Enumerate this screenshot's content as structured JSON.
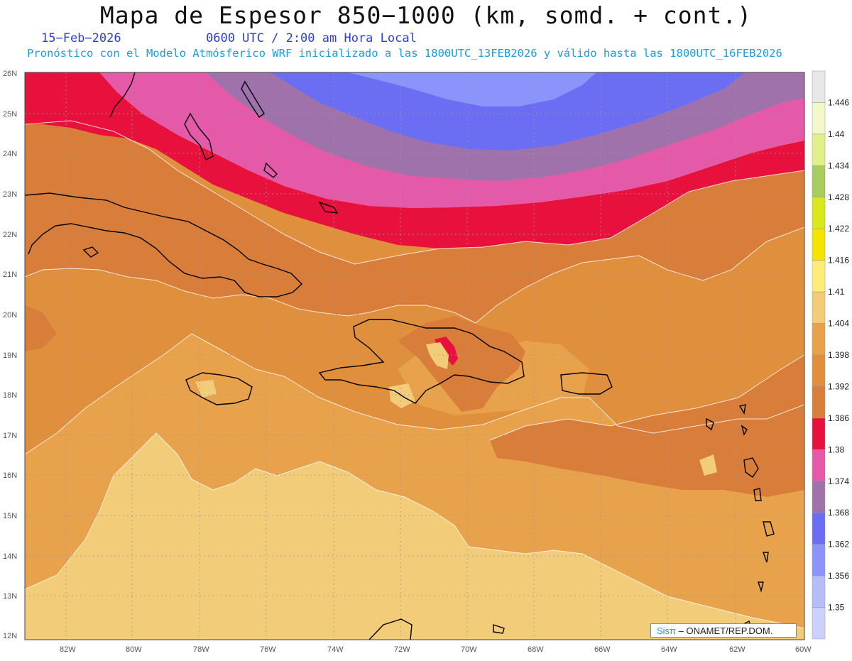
{
  "header": {
    "title": "Mapa de Espesor 850−1000 (km, somd. + cont.)",
    "date": "15−Feb−2026",
    "time": "0600 UTC / 2:00 am Hora Local",
    "subtitle": "Pronóstico con el Modelo Atmósferico WRF inicializado a las 1800UTC_13FEB2026 y válido hasta las  1800UTC_16FEB2026"
  },
  "map": {
    "lat_labels": [
      "26N",
      "25N",
      "24N",
      "23N",
      "22N",
      "21N",
      "20N",
      "19N",
      "18N",
      "17N",
      "16N",
      "15N",
      "14N",
      "13N",
      "12N"
    ],
    "lon_labels": [
      "82W",
      "80W",
      "78W",
      "76W",
      "74W",
      "72W",
      "70W",
      "68W",
      "66W",
      "64W",
      "62W",
      "60W"
    ],
    "colors": {
      "c1392": "#e08f3c",
      "c1386": "#d87e3a",
      "c1398": "#e8a24c",
      "c1404": "#f2cc78",
      "c1380": "#e8103c",
      "c1374": "#e459a8",
      "c1368": "#a072ac",
      "c1362": "#6b6ef2",
      "c1356": "#8a94fa",
      "c1410": "#fde98a"
    }
  },
  "colorbar": {
    "labels": [
      "1.446",
      "1.44",
      "1.434",
      "1.428",
      "1.422",
      "1.416",
      "1.41",
      "1.404",
      "1.398",
      "1.392",
      "1.386",
      "1.38",
      "1.374",
      "1.368",
      "1.362",
      "1.356",
      "1.35"
    ],
    "colors": [
      "#e8e8e8",
      "#f4f7c8",
      "#e1f08a",
      "#a8cc62",
      "#d8e81a",
      "#f5e400",
      "#fdec7a",
      "#f2cc78",
      "#e8a24c",
      "#e08f3c",
      "#d87e3a",
      "#e8103c",
      "#e459a8",
      "#a072ac",
      "#6b6ef2",
      "#8a94fa",
      "#b5bdfb",
      "#cbd1fc"
    ]
  },
  "credit": {
    "brand": "Sisπ",
    "text": "– ONAMET/REP.DOM."
  }
}
